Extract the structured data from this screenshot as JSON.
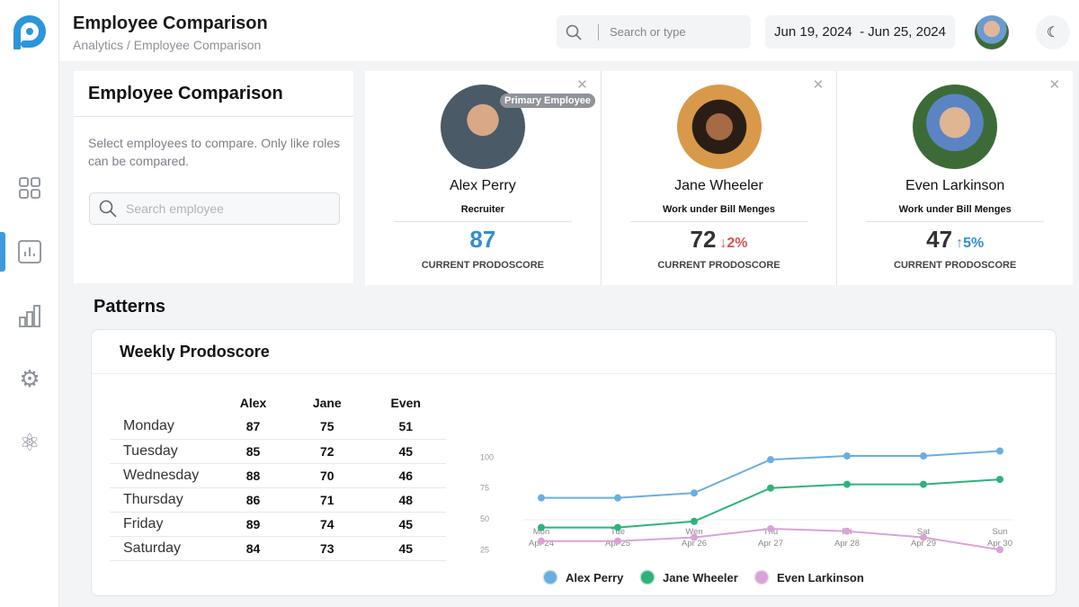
{
  "header": {
    "title": "Employee Comparison",
    "breadcrumb": "Analytics / Employee Comparison",
    "search_placeholder": "Search or type",
    "date_range": "Jun 19, 2024  - Jun 25, 2024"
  },
  "sidebar": {
    "items": [
      {
        "icon": "grid-icon"
      },
      {
        "icon": "chart-icon",
        "active": true
      },
      {
        "icon": "bar-chart-icon"
      },
      {
        "icon": "gear-icon"
      },
      {
        "icon": "atom-icon"
      }
    ]
  },
  "selector": {
    "title": "Employee Comparison",
    "description": "Select employees to compare. Only like roles can be compared.",
    "search_placeholder": "Search employee"
  },
  "employees": [
    {
      "name": "Alex Perry",
      "role": "Recruiter",
      "score": "87",
      "delta": "",
      "badge": "Primary Employee",
      "score_color": "#2f8fd0"
    },
    {
      "name": "Jane Wheeler",
      "role": "Work under Bill Menges",
      "score": "72",
      "delta": "↓2%",
      "delta_color": "#d9534f"
    },
    {
      "name": "Even Larkinson",
      "role": "Work under Bill Menges",
      "score": "47",
      "delta": "↑5%",
      "delta_color": "#2f8fd0"
    }
  ],
  "score_label": "CURRENT PRODOSCORE",
  "patterns": {
    "title": "Patterns",
    "card_title": "Weekly Prodoscore",
    "table": {
      "headers": [
        "",
        "Alex",
        "Jane",
        "Even"
      ],
      "rows": [
        [
          "Monday",
          "87",
          "75",
          "51"
        ],
        [
          "Tuesday",
          "85",
          "72",
          "45"
        ],
        [
          "Wednesday",
          "88",
          "70",
          "46"
        ],
        [
          "Thursday",
          "86",
          "71",
          "48"
        ],
        [
          "Friday",
          "89",
          "74",
          "45"
        ],
        [
          "Saturday",
          "84",
          "73",
          "45"
        ]
      ]
    }
  },
  "chart_data": {
    "type": "line",
    "x": [
      "Mon Apr 24",
      "Tue Apr 25",
      "Wen Apr 26",
      "Thu Apr 27",
      "Fri Apr 28",
      "Sat Apr 29",
      "Sun Apr 30"
    ],
    "yticks": [
      25,
      50,
      75,
      100
    ],
    "ylim": [
      0,
      110
    ],
    "legend": "bottom",
    "series": [
      {
        "name": "Alex Perry",
        "color": "#6aaee0",
        "values": [
          67,
          67,
          71,
          98,
          101,
          101,
          105
        ]
      },
      {
        "name": "Jane Wheeler",
        "color": "#2db37a",
        "values": [
          43,
          43,
          48,
          75,
          78,
          78,
          82
        ]
      },
      {
        "name": "Even Larkinson",
        "color": "#d9a3d6",
        "values": [
          32,
          32,
          35,
          42,
          40,
          35,
          25
        ]
      }
    ]
  }
}
